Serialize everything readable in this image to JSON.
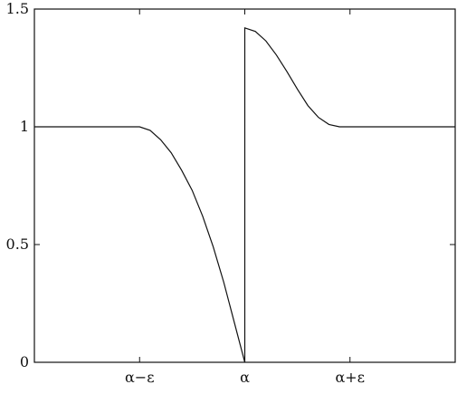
{
  "chart_data": {
    "type": "line",
    "title": "",
    "xlabel": "",
    "ylabel": "",
    "xlim": [
      -2,
      2
    ],
    "ylim": [
      0,
      1.5
    ],
    "grid": false,
    "x_ticks": [
      {
        "value": -1,
        "label": "α−ε"
      },
      {
        "value": 0,
        "label": "α"
      },
      {
        "value": 1,
        "label": "α+ε"
      }
    ],
    "y_ticks": [
      {
        "value": 0,
        "label": "0"
      },
      {
        "value": 0.5,
        "label": "0.5"
      },
      {
        "value": 1,
        "label": "1"
      },
      {
        "value": 1.5,
        "label": "1.5"
      }
    ],
    "series": [
      {
        "points": [
          [
            -2.0,
            1.0
          ],
          [
            -1.0,
            1.0
          ],
          [
            -0.9,
            0.985
          ],
          [
            -0.8,
            0.945
          ],
          [
            -0.7,
            0.89
          ],
          [
            -0.6,
            0.815
          ],
          [
            -0.5,
            0.73
          ],
          [
            -0.4,
            0.62
          ],
          [
            -0.3,
            0.49
          ],
          [
            -0.2,
            0.34
          ],
          [
            -0.1,
            0.17
          ],
          [
            0.0,
            0.0
          ],
          [
            0.0,
            1.42
          ],
          [
            0.1,
            1.405
          ],
          [
            0.2,
            1.365
          ],
          [
            0.3,
            1.305
          ],
          [
            0.4,
            1.235
          ],
          [
            0.5,
            1.16
          ],
          [
            0.6,
            1.09
          ],
          [
            0.7,
            1.04
          ],
          [
            0.8,
            1.01
          ],
          [
            0.9,
            1.0
          ],
          [
            1.0,
            1.0
          ],
          [
            2.0,
            1.0
          ]
        ]
      }
    ]
  }
}
